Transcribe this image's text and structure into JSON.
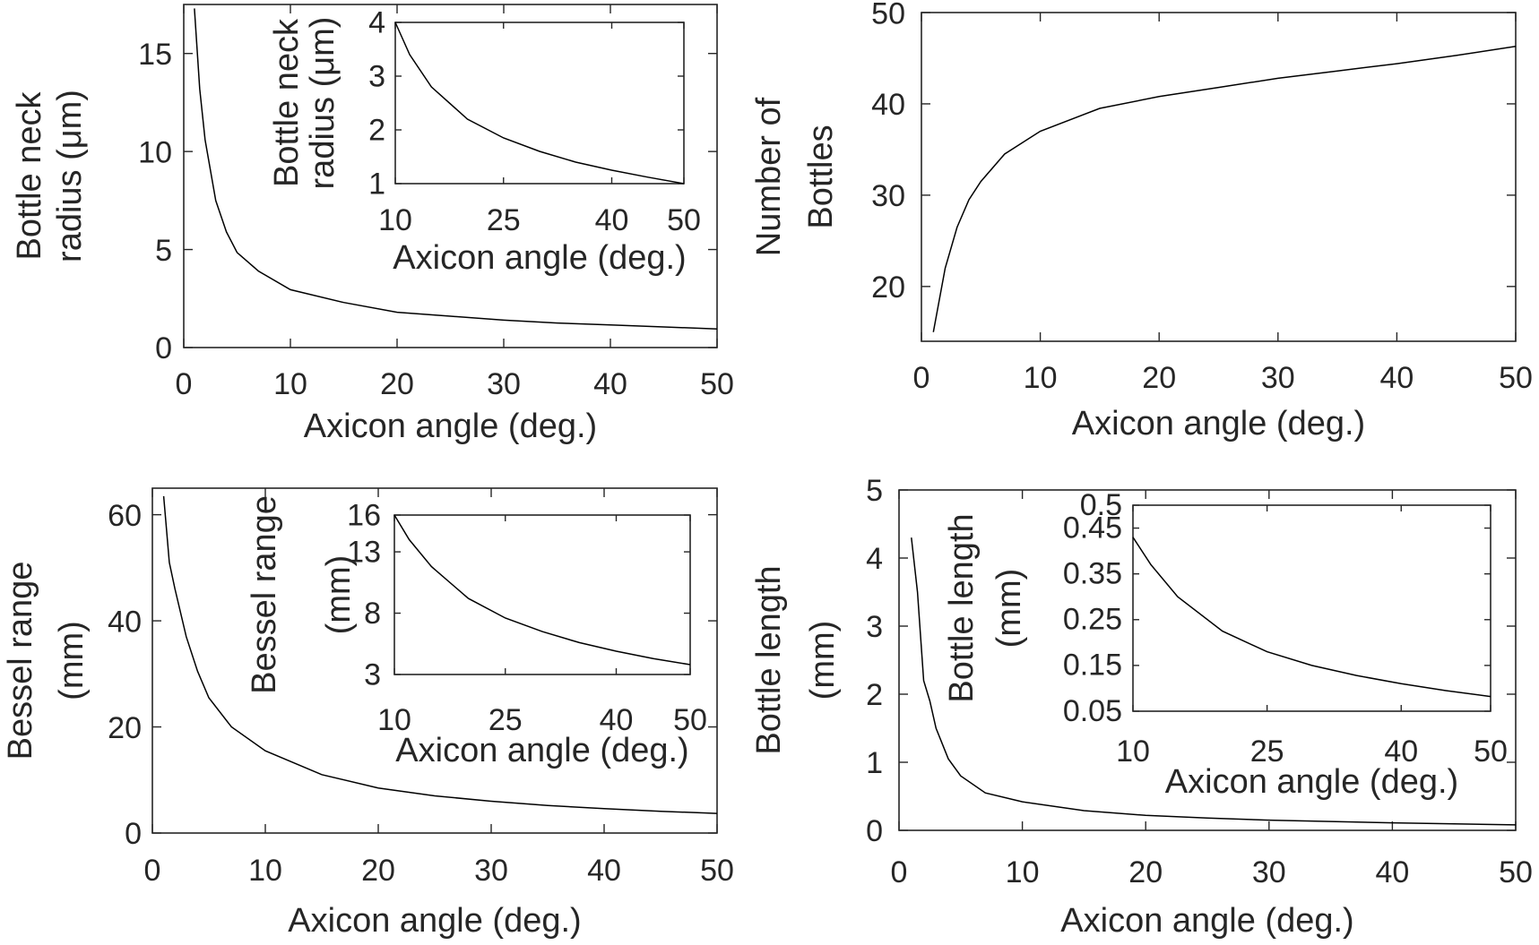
{
  "chart_data": [
    {
      "id": "p1",
      "type": "line",
      "xlabel": [
        "Axicon angle (deg.)"
      ],
      "ylabel": [
        "Bottle neck",
        "radius (μm)"
      ],
      "xlim": [
        0,
        50
      ],
      "ylim": [
        0,
        17.5
      ],
      "xticks": [
        0,
        10,
        20,
        30,
        40,
        50
      ],
      "yticks": [
        0,
        5,
        10,
        15
      ],
      "series": [
        {
          "x": [
            1,
            1.5,
            2,
            3,
            4,
            5,
            7,
            10,
            15,
            20,
            25,
            30,
            35,
            40,
            45,
            50
          ],
          "y": [
            17.3,
            13.2,
            10.6,
            7.5,
            5.9,
            4.85,
            3.9,
            2.95,
            2.3,
            1.8,
            1.6,
            1.4,
            1.25,
            1.15,
            1.05,
            0.95
          ]
        }
      ]
    },
    {
      "id": "p1-inset",
      "type": "line",
      "xlabel": [
        "Axicon angle (deg.)"
      ],
      "ylabel": [
        "Bottle neck",
        "radius (μm)"
      ],
      "xlim": [
        10,
        50
      ],
      "ylim": [
        1,
        4
      ],
      "xticks": [
        10,
        25,
        40,
        50
      ],
      "yticks": [
        1,
        2,
        3,
        4
      ],
      "series": [
        {
          "x": [
            10,
            12,
            15,
            20,
            25,
            30,
            35,
            40,
            45,
            50
          ],
          "y": [
            4,
            3.4,
            2.8,
            2.2,
            1.85,
            1.6,
            1.4,
            1.25,
            1.12,
            1.0
          ]
        }
      ]
    },
    {
      "id": "p2",
      "type": "line",
      "xlabel": [
        "Axicon angle (deg.)"
      ],
      "ylabel": [
        "Number of",
        "Bottles"
      ],
      "xlim": [
        0,
        50
      ],
      "ylim": [
        14,
        50
      ],
      "xticks": [
        0,
        10,
        20,
        30,
        40,
        50
      ],
      "yticks": [
        20,
        30,
        40,
        50
      ],
      "series": [
        {
          "x": [
            1,
            2,
            3,
            4,
            5,
            7,
            10,
            15,
            20,
            25,
            30,
            35,
            40,
            45,
            50
          ],
          "y": [
            15,
            22,
            26.5,
            29.5,
            31.5,
            34.5,
            37,
            39.5,
            40.8,
            41.8,
            42.8,
            43.6,
            44.4,
            45.3,
            46.3
          ]
        }
      ]
    },
    {
      "id": "p3",
      "type": "line",
      "xlabel": [
        "Axicon angle (deg.)"
      ],
      "ylabel": [
        "Bessel range",
        "(mm)"
      ],
      "xlim": [
        0,
        50
      ],
      "ylim": [
        0,
        65
      ],
      "xticks": [
        0,
        10,
        20,
        30,
        40,
        50
      ],
      "yticks": [
        0,
        20,
        40,
        60
      ],
      "series": [
        {
          "x": [
            1,
            1.5,
            2,
            3,
            4,
            5,
            7,
            10,
            15,
            20,
            25,
            30,
            35,
            40,
            45,
            50
          ],
          "y": [
            63.5,
            51,
            46,
            37,
            30.5,
            25.5,
            20,
            15.5,
            11,
            8.5,
            7,
            6,
            5.2,
            4.6,
            4.1,
            3.7
          ]
        }
      ]
    },
    {
      "id": "p3-inset",
      "type": "line",
      "xlabel": [
        "Axicon angle (deg.)"
      ],
      "ylabel": [
        "Bessel range",
        "(mm)"
      ],
      "xlim": [
        10,
        50
      ],
      "ylim": [
        3,
        16
      ],
      "xticks": [
        10,
        25,
        40,
        50
      ],
      "yticks": [
        3,
        8,
        13,
        16
      ],
      "series": [
        {
          "x": [
            10,
            12,
            15,
            20,
            25,
            30,
            35,
            40,
            45,
            50
          ],
          "y": [
            16,
            14,
            11.8,
            9.2,
            7.6,
            6.5,
            5.6,
            4.9,
            4.3,
            3.8
          ]
        }
      ]
    },
    {
      "id": "p4",
      "type": "line",
      "xlabel": [
        "Axicon angle (deg.)"
      ],
      "ylabel": [
        "Bottle length",
        "(mm)"
      ],
      "xlim": [
        0,
        50
      ],
      "ylim": [
        0,
        5
      ],
      "xticks": [
        0,
        10,
        20,
        30,
        40,
        50
      ],
      "yticks": [
        0,
        1,
        2,
        3,
        4,
        5
      ],
      "series": [
        {
          "x": [
            1,
            1.5,
            2,
            2.5,
            3,
            4,
            5,
            7,
            10,
            15,
            20,
            25,
            30,
            35,
            40,
            45,
            50
          ],
          "y": [
            4.3,
            3.5,
            2.2,
            1.9,
            1.5,
            1.05,
            0.8,
            0.55,
            0.42,
            0.29,
            0.22,
            0.18,
            0.15,
            0.13,
            0.11,
            0.095,
            0.08
          ]
        }
      ]
    },
    {
      "id": "p4-inset",
      "type": "line",
      "xlabel": [
        "Axicon angle (deg.)"
      ],
      "ylabel": [
        "Bottle length",
        "(mm)"
      ],
      "xlim": [
        10,
        50
      ],
      "ylim": [
        0.05,
        0.5
      ],
      "xticks": [
        10,
        25,
        40,
        50
      ],
      "yticks": [
        0.05,
        0.15,
        0.25,
        0.35,
        0.45,
        0.5
      ],
      "ytick_labels": [
        "0.05",
        "0.15",
        "0.25",
        "0.35",
        "0.45",
        "0.5"
      ],
      "series": [
        {
          "x": [
            10,
            12,
            15,
            20,
            25,
            30,
            35,
            40,
            45,
            50
          ],
          "y": [
            0.43,
            0.37,
            0.3,
            0.225,
            0.18,
            0.15,
            0.128,
            0.11,
            0.095,
            0.082
          ]
        }
      ]
    }
  ]
}
